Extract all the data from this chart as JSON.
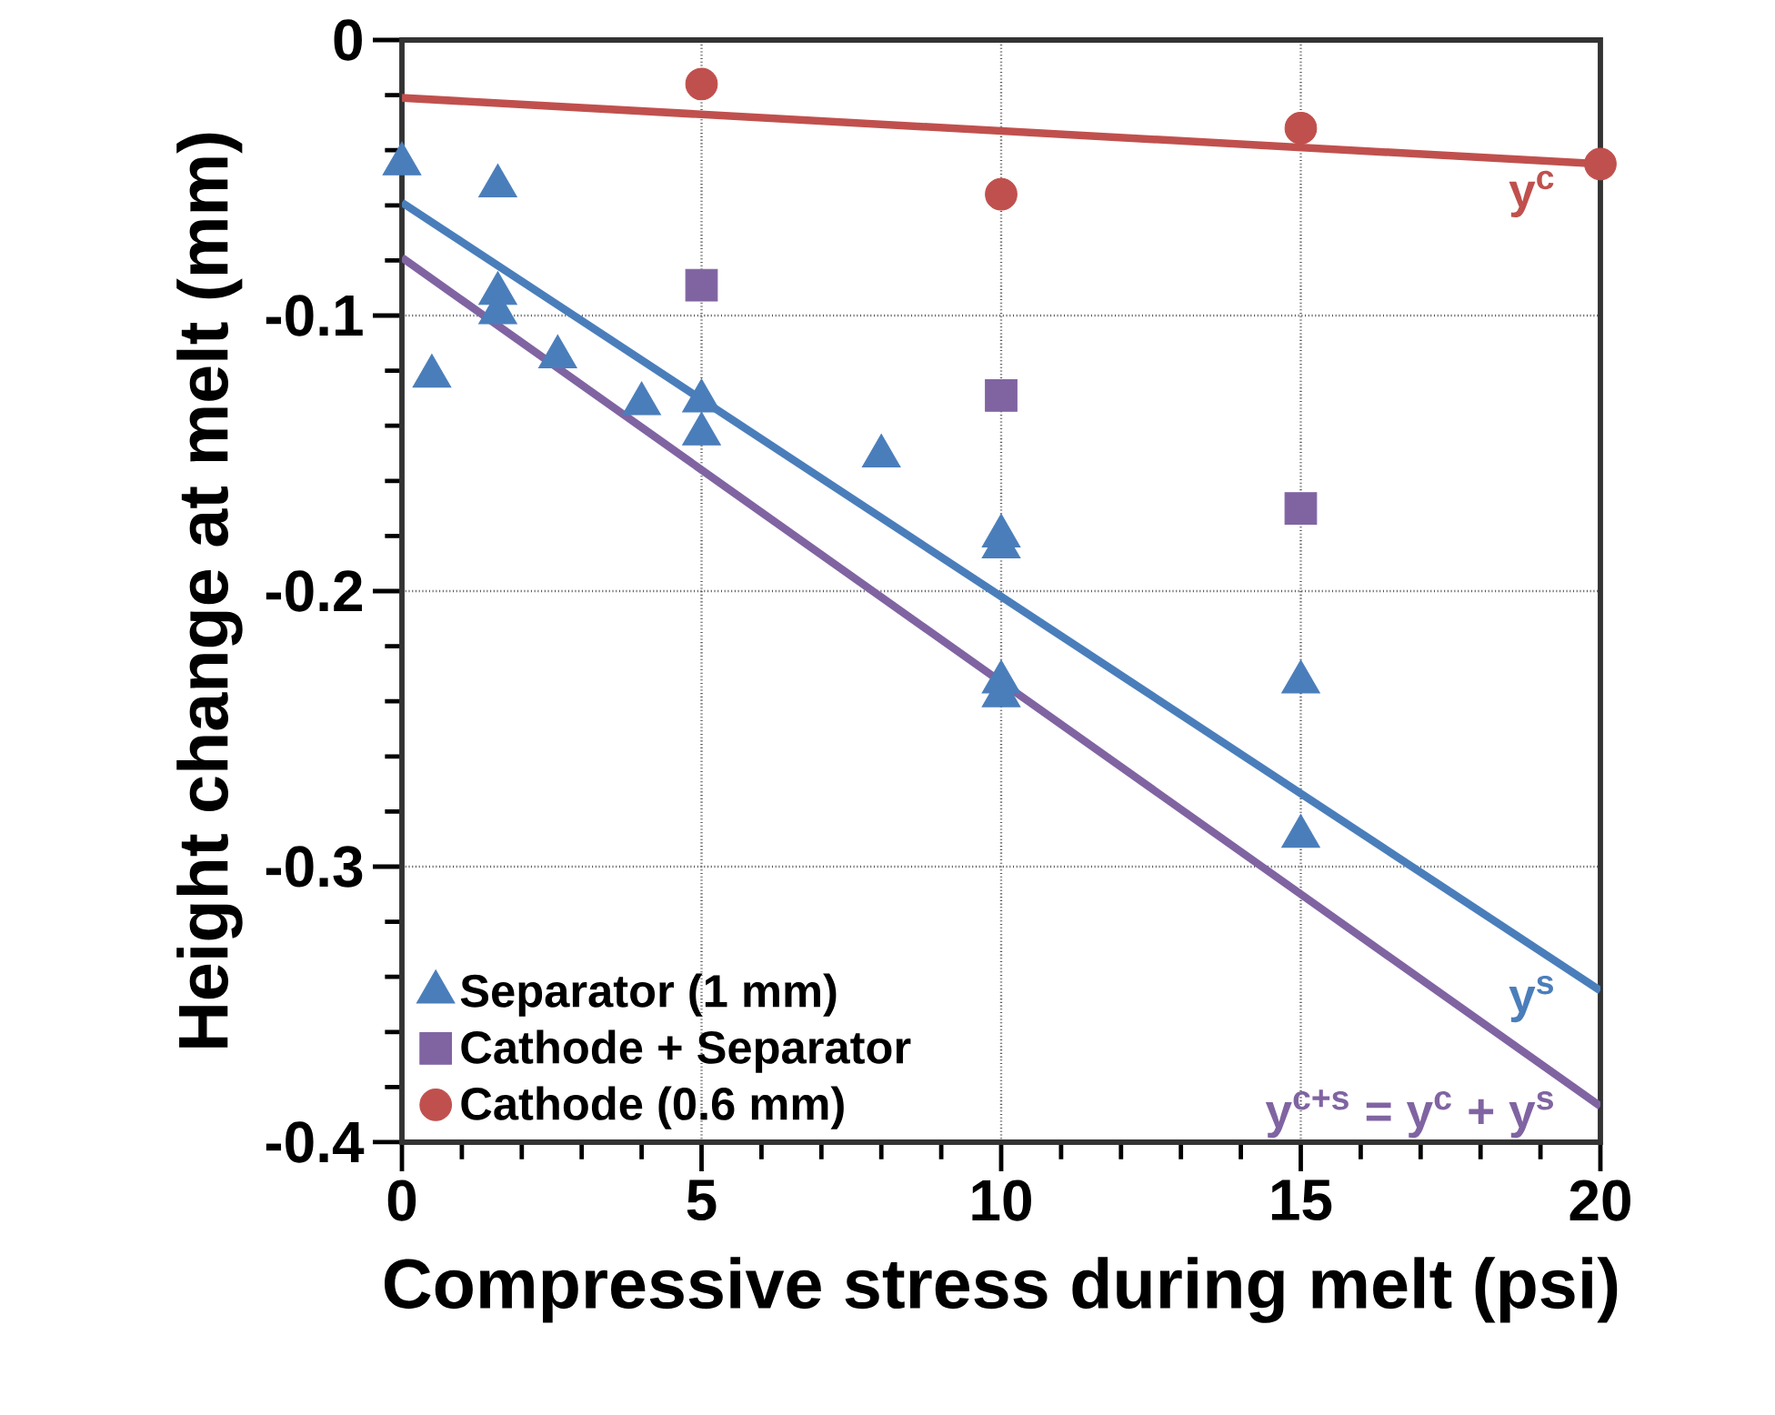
{
  "chart_data": {
    "type": "scatter",
    "xlabel": "Compressive stress during melt (psi)",
    "ylabel": "Height change at melt (mm)",
    "xlim": [
      0,
      20
    ],
    "xticks": [
      0,
      5,
      10,
      15,
      20
    ],
    "ylim": [
      -0.4,
      0
    ],
    "yticks": [
      -0.4,
      -0.3,
      -0.2,
      -0.1,
      0
    ],
    "grid": true,
    "legend": "bottom left",
    "series": [
      {
        "name": "Separator (1 mm)",
        "color": "#4a7ebb",
        "marker": "triangle",
        "x": [
          0,
          0.5,
          1.6,
          1.6,
          1.6,
          2.6,
          4.0,
          5,
          5,
          8.0,
          10,
          10,
          10,
          10,
          15,
          15
        ],
        "values": [
          -0.045,
          -0.122,
          -0.053,
          -0.092,
          -0.099,
          -0.115,
          -0.132,
          -0.131,
          -0.143,
          -0.151,
          -0.18,
          -0.184,
          -0.233,
          -0.238,
          -0.233,
          -0.289
        ]
      },
      {
        "name": "Cathode + Separator",
        "color": "#8064a2",
        "marker": "square",
        "x": [
          5,
          10,
          15
        ],
        "values": [
          -0.089,
          -0.129,
          -0.17
        ]
      },
      {
        "name": "Cathode (0.6 mm)",
        "color": "#c0504d",
        "marker": "circle",
        "x": [
          5,
          10,
          15,
          20
        ],
        "values": [
          -0.016,
          -0.056,
          -0.032,
          -0.045
        ]
      },
      {
        "type": "line",
        "name": "y$^{c}$",
        "color": "#c0504d",
        "marker": "none",
        "line_style": "solid",
        "x": [
          0,
          20
        ],
        "values": [
          -0.021,
          -0.045
        ]
      },
      {
        "type": "line",
        "name": "y$^{s}$",
        "color": "#4a7ebb",
        "marker": "none",
        "line_style": "solid",
        "x": [
          0,
          20
        ],
        "values": [
          -0.059,
          -0.345
        ]
      },
      {
        "type": "line",
        "name": "y$^{c+s}$ = y$^{c}$ + y$^{s}$",
        "color": "#8064a2",
        "marker": "none",
        "line_style": "solid",
        "x": [
          0,
          20
        ],
        "values": [
          -0.079,
          -0.387
        ]
      }
    ]
  }
}
